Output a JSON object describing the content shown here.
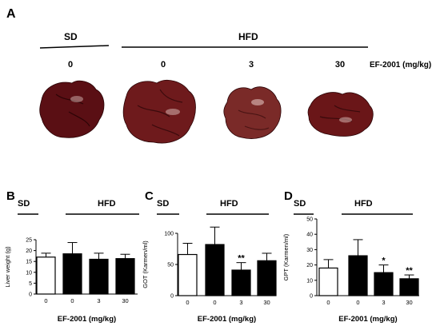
{
  "panel_a": {
    "letter": "A",
    "groups": [
      {
        "name": "SD"
      },
      {
        "name": "HFD"
      }
    ],
    "doses": [
      "0",
      "0",
      "3",
      "30"
    ],
    "dose_label": "EF-2001 (mg/kg)",
    "liver_colors": [
      "#5a0f14",
      "#6e1a1c",
      "#7a2a28",
      "#6a1618"
    ]
  },
  "chart_data": [
    {
      "type": "bar",
      "letter": "B",
      "groups": [
        "SD",
        "HFD"
      ],
      "categories": [
        "0",
        "0",
        "3",
        "30"
      ],
      "values": [
        17,
        18.5,
        16,
        16.3
      ],
      "errors": [
        1.8,
        5.2,
        2.8,
        2.0
      ],
      "fills": [
        "#ffffff",
        "#000000",
        "#000000",
        "#000000"
      ],
      "significance": [
        "",
        "",
        "",
        ""
      ],
      "ylabel": "Liver weight (g)",
      "xlabel": "EF-2001 (mg/kg)",
      "ylim": [
        0,
        25
      ],
      "yticks": [
        0,
        5,
        10,
        15,
        20,
        25
      ]
    },
    {
      "type": "bar",
      "letter": "C",
      "groups": [
        "SD",
        "HFD"
      ],
      "categories": [
        "0",
        "0",
        "3",
        "30"
      ],
      "values": [
        66,
        82,
        41,
        56
      ],
      "errors": [
        18,
        28,
        12,
        12
      ],
      "fills": [
        "#ffffff",
        "#000000",
        "#000000",
        "#000000"
      ],
      "significance": [
        "",
        "",
        "**",
        ""
      ],
      "ylabel": "GOT (Karmen/ml)",
      "xlabel": "EF-2001 (mg/kg)",
      "ylim": [
        0,
        100
      ],
      "yticks": [
        0,
        50,
        100
      ]
    },
    {
      "type": "bar",
      "letter": "D",
      "groups": [
        "SD",
        "HFD"
      ],
      "categories": [
        "0",
        "0",
        "3",
        "30"
      ],
      "values": [
        18,
        26,
        15,
        11
      ],
      "errors": [
        5.5,
        10.5,
        5,
        2.5
      ],
      "fills": [
        "#ffffff",
        "#000000",
        "#000000",
        "#000000"
      ],
      "significance": [
        "",
        "",
        "*",
        "**"
      ],
      "ylabel": "GPT (Karmen/ml)",
      "xlabel": "EF-2001 (mg/kg)",
      "ylim": [
        0,
        50
      ],
      "yticks": [
        0,
        10,
        20,
        30,
        40,
        50
      ]
    }
  ]
}
